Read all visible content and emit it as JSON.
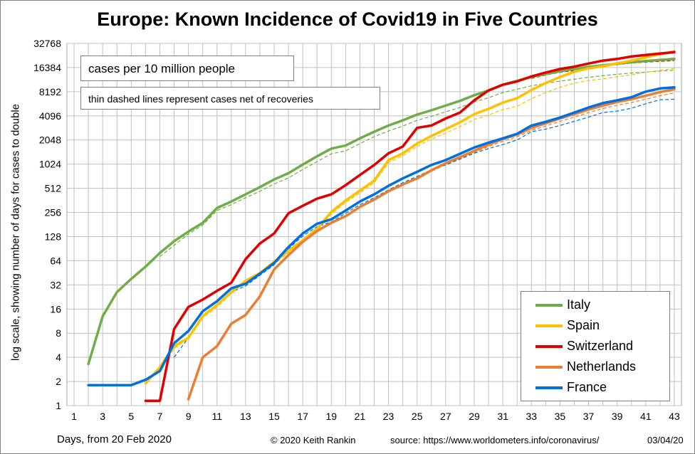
{
  "title": "Europe: Known Incidence of Covid19 in Five Countries",
  "ylabel": "log scale, showing number of days for cases to double",
  "note_main": "cases per 10 million people",
  "note_sub": "thin dashed lines represent cases net of recoveries",
  "footer": {
    "xlabel": "Days, from 20 Feb 2020",
    "copyright": "© 2020  Keith Rankin",
    "source": "source:  https://www.worldometers.info/coronavirus/",
    "date": "03/04/20"
  },
  "chart_data": {
    "type": "line",
    "y_scale": "log2",
    "ylim": [
      1,
      32768
    ],
    "xlim": [
      1,
      43
    ],
    "y_ticks": [
      1,
      2,
      4,
      8,
      16,
      32,
      64,
      128,
      256,
      512,
      1024,
      2048,
      4096,
      8192,
      16384,
      32768
    ],
    "x_ticks": [
      1,
      3,
      5,
      7,
      9,
      11,
      13,
      15,
      17,
      19,
      21,
      23,
      25,
      27,
      29,
      31,
      33,
      35,
      37,
      39,
      41,
      43
    ],
    "grid": true,
    "legend": "bottom-right",
    "series": [
      {
        "name": "Italy",
        "color": "#70ad47",
        "x": [
          2,
          3,
          4,
          5,
          6,
          7,
          8,
          9,
          10,
          11,
          12,
          13,
          14,
          15,
          16,
          17,
          18,
          19,
          20,
          21,
          22,
          23,
          24,
          25,
          26,
          27,
          28,
          29,
          30,
          31,
          32,
          33,
          34,
          35,
          36,
          37,
          38,
          39,
          40,
          41,
          42,
          43
        ],
        "values": [
          3.3,
          13,
          26,
          38,
          54,
          80,
          112,
          148,
          190,
          290,
          350,
          430,
          530,
          660,
          790,
          1010,
          1280,
          1600,
          1750,
          2150,
          2600,
          3100,
          3600,
          4250,
          4800,
          5500,
          6300,
          7400,
          8500,
          10000,
          11200,
          12500,
          13600,
          14700,
          15700,
          16700,
          17500,
          18300,
          19100,
          19800,
          20400,
          21000
        ]
      },
      {
        "name": "Spain",
        "color": "#ffc000",
        "x": [
          6,
          7,
          8,
          9,
          10,
          11,
          12,
          13,
          14,
          15,
          16,
          17,
          18,
          19,
          20,
          21,
          22,
          23,
          24,
          25,
          26,
          27,
          28,
          29,
          30,
          31,
          32,
          33,
          34,
          35,
          36,
          37,
          38,
          39,
          40,
          41,
          42,
          43
        ],
        "values": [
          1.9,
          3.0,
          5.5,
          7.0,
          13,
          18,
          26,
          36,
          45,
          62,
          85,
          115,
          160,
          260,
          360,
          480,
          640,
          1150,
          1400,
          1850,
          2300,
          2800,
          3400,
          4300,
          5000,
          6000,
          6800,
          8600,
          10500,
          12500,
          14500,
          16000,
          17000,
          18500,
          20000,
          22000,
          24000,
          26000
        ]
      },
      {
        "name": "Switzerland",
        "color": "#e00000",
        "x": [
          6,
          7,
          8,
          9,
          10,
          11,
          12,
          13,
          14,
          15,
          16,
          17,
          18,
          19,
          20,
          21,
          22,
          23,
          24,
          25,
          26,
          27,
          28,
          29,
          30,
          31,
          32,
          33,
          34,
          35,
          36,
          37,
          38,
          39,
          40,
          41,
          42,
          43
        ],
        "values": [
          1.15,
          1.15,
          9,
          17,
          21,
          27,
          34,
          67,
          105,
          140,
          250,
          310,
          380,
          430,
          560,
          750,
          1000,
          1400,
          1700,
          2900,
          3100,
          3800,
          4500,
          6400,
          8500,
          10000,
          11000,
          12700,
          14200,
          15700,
          16800,
          18400,
          20000,
          21000,
          22500,
          23500,
          24500,
          25500
        ]
      },
      {
        "name": "Netherlands",
        "color": "#ed7d31",
        "x": [
          9,
          10,
          11,
          12,
          13,
          14,
          15,
          16,
          17,
          18,
          19,
          20,
          21,
          22,
          23,
          24,
          25,
          26,
          27,
          28,
          29,
          30,
          31,
          32,
          33,
          34,
          35,
          36,
          37,
          38,
          39,
          40,
          41,
          42,
          43
        ],
        "values": [
          1.2,
          4,
          5.5,
          10.5,
          13.5,
          23,
          50,
          75,
          110,
          150,
          190,
          230,
          300,
          370,
          470,
          570,
          680,
          860,
          1050,
          1250,
          1500,
          1800,
          2100,
          2400,
          2900,
          3300,
          3800,
          4300,
          4900,
          5500,
          6100,
          6600,
          7300,
          8100,
          8800
        ]
      },
      {
        "name": "France",
        "color": "#0070e0",
        "x": [
          2,
          3,
          4,
          5,
          6,
          7,
          8,
          9,
          10,
          11,
          12,
          13,
          14,
          15,
          16,
          17,
          18,
          19,
          20,
          21,
          22,
          23,
          24,
          25,
          26,
          27,
          28,
          29,
          30,
          31,
          32,
          33,
          34,
          35,
          36,
          37,
          38,
          39,
          40,
          41,
          42,
          43
        ],
        "values": [
          1.8,
          1.8,
          1.8,
          1.8,
          2.1,
          2.7,
          6,
          8.5,
          15,
          20,
          29,
          33,
          44,
          60,
          95,
          140,
          185,
          210,
          270,
          350,
          430,
          550,
          680,
          820,
          1000,
          1150,
          1380,
          1650,
          1900,
          2150,
          2450,
          3100,
          3450,
          3900,
          4500,
          5200,
          5900,
          6400,
          7000,
          8200,
          9000,
          9300
        ]
      }
    ],
    "dashed_series": [
      {
        "name": "Italy",
        "color": "#70ad47",
        "x": [
          7,
          8,
          9,
          10,
          11,
          12,
          13,
          14,
          15,
          16,
          17,
          18,
          19,
          20,
          21,
          22,
          23,
          24,
          25,
          26,
          27,
          28,
          29,
          30,
          31,
          32,
          33,
          34,
          35,
          36,
          37,
          38,
          39,
          40,
          41,
          42,
          43
        ],
        "values": [
          72,
          100,
          138,
          178,
          270,
          320,
          390,
          470,
          580,
          690,
          880,
          1100,
          1380,
          1500,
          1850,
          2250,
          2650,
          3050,
          3600,
          4050,
          4600,
          5200,
          6100,
          6900,
          8000,
          8800,
          9700,
          10400,
          11100,
          11700,
          12400,
          13000,
          13500,
          14000,
          14400,
          14800,
          15200
        ]
      },
      {
        "name": "Spain",
        "color": "#ffc000",
        "x": [
          7,
          8,
          9,
          10,
          11,
          12,
          13,
          14,
          15,
          16,
          17,
          18,
          19,
          20,
          21,
          22,
          23,
          24,
          25,
          26,
          27,
          28,
          29,
          30,
          31,
          32,
          33,
          34,
          35,
          36,
          37,
          38,
          39,
          40,
          41,
          42,
          43
        ],
        "values": [
          2.6,
          5.2,
          6.8,
          12.5,
          17,
          25,
          34,
          43,
          59,
          80,
          108,
          150,
          245,
          340,
          450,
          600,
          1070,
          1300,
          1700,
          2100,
          2500,
          3000,
          3700,
          4200,
          4900,
          5400,
          6700,
          8000,
          9300,
          10500,
          11300,
          11800,
          12600,
          13300,
          14300,
          15100,
          16000
        ]
      },
      {
        "name": "Switzerland",
        "color": "#e00000",
        "x": [
          33,
          34,
          35,
          36,
          37,
          38,
          39,
          40,
          41,
          42,
          43
        ],
        "values": [
          12000,
          13200,
          14300,
          15000,
          16200,
          17300,
          17800,
          18700,
          19100,
          19600,
          20000
        ]
      },
      {
        "name": "Netherlands",
        "color": "#ed7d31",
        "x": [
          25,
          26,
          27,
          28,
          29,
          30,
          31,
          32,
          33,
          34,
          35,
          36,
          37,
          38,
          39,
          40,
          41,
          42,
          43
        ],
        "values": [
          660,
          830,
          1010,
          1200,
          1430,
          1700,
          1970,
          2250,
          2700,
          3050,
          3500,
          3950,
          4500,
          5050,
          5550,
          6000,
          6600,
          7300,
          7900
        ]
      },
      {
        "name": "France",
        "color": "#0070e0",
        "x": [
          8,
          9,
          10,
          11,
          12,
          13,
          14,
          15,
          16,
          17,
          18,
          19,
          20,
          21,
          22,
          23,
          24,
          25,
          26,
          27,
          28,
          29,
          30,
          31,
          32,
          33,
          34,
          35,
          36,
          37,
          38,
          39,
          40,
          41,
          42,
          43
        ],
        "values": [
          4,
          7,
          13,
          18,
          26,
          31,
          42,
          57,
          90,
          130,
          170,
          195,
          250,
          320,
          390,
          490,
          600,
          720,
          870,
          1000,
          1180,
          1400,
          1600,
          1800,
          2050,
          2600,
          2800,
          3100,
          3500,
          3950,
          4500,
          4700,
          5100,
          5800,
          6500,
          6600
        ]
      }
    ]
  }
}
